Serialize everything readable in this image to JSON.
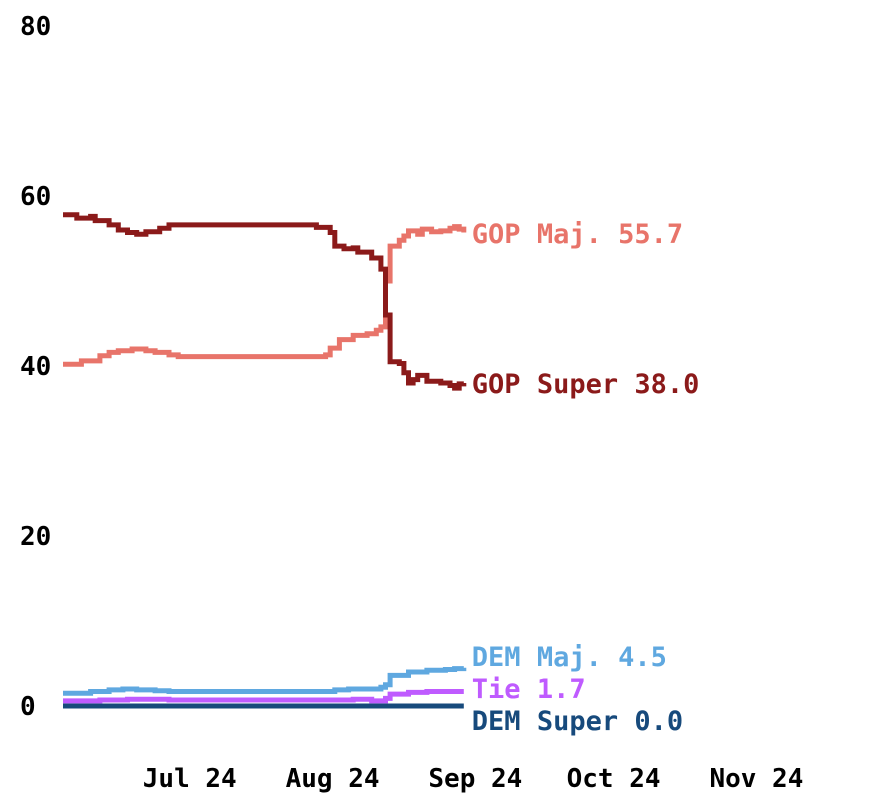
{
  "chart_data": {
    "type": "line",
    "ylim": [
      0,
      80
    ],
    "y_ticks": [
      "0",
      "20",
      "40",
      "60",
      "80"
    ],
    "x_range": [
      "2024-06-10",
      "2024-11-30"
    ],
    "x_ticks": [
      {
        "date": "2024-07-01",
        "label": "Jul 24"
      },
      {
        "date": "2024-08-01",
        "label": "Aug 24"
      },
      {
        "date": "2024-09-01",
        "label": "Sep 24"
      },
      {
        "date": "2024-10-01",
        "label": "Oct 24"
      },
      {
        "date": "2024-11-01",
        "label": "Nov 24"
      }
    ],
    "grid": false,
    "legend": "end-of-line labels",
    "series": [
      {
        "name": "GOP Maj.",
        "end_label": "55.7",
        "color": "#e8746a",
        "points": [
          [
            "2024-06-10",
            40.2
          ],
          [
            "2024-06-13",
            40.2
          ],
          [
            "2024-06-14",
            40.6
          ],
          [
            "2024-06-17",
            40.6
          ],
          [
            "2024-06-18",
            41.2
          ],
          [
            "2024-06-20",
            41.6
          ],
          [
            "2024-06-22",
            41.8
          ],
          [
            "2024-06-25",
            42.0
          ],
          [
            "2024-06-28",
            41.8
          ],
          [
            "2024-06-30",
            41.6
          ],
          [
            "2024-07-03",
            41.3
          ],
          [
            "2024-07-05",
            41.1
          ],
          [
            "2024-08-01",
            41.1
          ],
          [
            "2024-08-03",
            41.1
          ],
          [
            "2024-08-06",
            41.3
          ],
          [
            "2024-08-07",
            42.1
          ],
          [
            "2024-08-09",
            43.1
          ],
          [
            "2024-08-11",
            43.1
          ],
          [
            "2024-08-12",
            43.6
          ],
          [
            "2024-08-15",
            43.8
          ],
          [
            "2024-08-17",
            44.2
          ],
          [
            "2024-08-18",
            44.6
          ],
          [
            "2024-08-19",
            50.0
          ],
          [
            "2024-08-20",
            54.1
          ],
          [
            "2024-08-22",
            54.8
          ],
          [
            "2024-08-23",
            55.3
          ],
          [
            "2024-08-24",
            55.9
          ],
          [
            "2024-08-26",
            55.5
          ],
          [
            "2024-08-27",
            56.1
          ],
          [
            "2024-08-29",
            55.8
          ],
          [
            "2024-08-31",
            55.9
          ],
          [
            "2024-09-02",
            56.2
          ],
          [
            "2024-09-03",
            56.4
          ],
          [
            "2024-09-04",
            56.1
          ],
          [
            "2024-09-05",
            55.7
          ]
        ]
      },
      {
        "name": "GOP Super",
        "end_label": "38.0",
        "color": "#8b1a1a",
        "points": [
          [
            "2024-06-10",
            57.8
          ],
          [
            "2024-06-13",
            57.4
          ],
          [
            "2024-06-16",
            57.6
          ],
          [
            "2024-06-17",
            57.1
          ],
          [
            "2024-06-20",
            56.6
          ],
          [
            "2024-06-22",
            56.0
          ],
          [
            "2024-06-24",
            55.7
          ],
          [
            "2024-06-26",
            55.5
          ],
          [
            "2024-06-28",
            55.8
          ],
          [
            "2024-07-01",
            56.2
          ],
          [
            "2024-07-03",
            56.6
          ],
          [
            "2024-07-04",
            56.6
          ],
          [
            "2024-07-31",
            56.6
          ],
          [
            "2024-08-03",
            56.6
          ],
          [
            "2024-08-04",
            56.3
          ],
          [
            "2024-08-07",
            55.7
          ],
          [
            "2024-08-08",
            54.1
          ],
          [
            "2024-08-10",
            53.8
          ],
          [
            "2024-08-12",
            53.9
          ],
          [
            "2024-08-13",
            53.4
          ],
          [
            "2024-08-16",
            52.7
          ],
          [
            "2024-08-18",
            51.4
          ],
          [
            "2024-08-19",
            46.0
          ],
          [
            "2024-08-20",
            40.5
          ],
          [
            "2024-08-22",
            40.3
          ],
          [
            "2024-08-23",
            39.2
          ],
          [
            "2024-08-24",
            38.0
          ],
          [
            "2024-08-25",
            38.4
          ],
          [
            "2024-08-26",
            38.9
          ],
          [
            "2024-08-28",
            38.2
          ],
          [
            "2024-08-31",
            38.0
          ],
          [
            "2024-09-02",
            37.7
          ],
          [
            "2024-09-03",
            37.4
          ],
          [
            "2024-09-04",
            37.9
          ],
          [
            "2024-09-05",
            38.0
          ]
        ]
      },
      {
        "name": "DEM Maj.",
        "end_label": "4.5",
        "color": "#5fa8e0",
        "points": [
          [
            "2024-06-10",
            1.5
          ],
          [
            "2024-06-14",
            1.5
          ],
          [
            "2024-06-16",
            1.7
          ],
          [
            "2024-06-20",
            1.9
          ],
          [
            "2024-06-23",
            2.0
          ],
          [
            "2024-06-26",
            1.9
          ],
          [
            "2024-06-30",
            1.8
          ],
          [
            "2024-07-03",
            1.7
          ],
          [
            "2024-08-05",
            1.7
          ],
          [
            "2024-08-08",
            1.9
          ],
          [
            "2024-08-11",
            2.0
          ],
          [
            "2024-08-16",
            2.0
          ],
          [
            "2024-08-18",
            2.2
          ],
          [
            "2024-08-19",
            2.5
          ],
          [
            "2024-08-20",
            3.6
          ],
          [
            "2024-08-24",
            4.0
          ],
          [
            "2024-08-28",
            4.2
          ],
          [
            "2024-09-01",
            4.3
          ],
          [
            "2024-09-03",
            4.4
          ],
          [
            "2024-09-05",
            4.5
          ]
        ]
      },
      {
        "name": "Tie",
        "end_label": "1.7",
        "color": "#bf5bff",
        "points": [
          [
            "2024-06-10",
            0.6
          ],
          [
            "2024-06-18",
            0.7
          ],
          [
            "2024-06-24",
            0.8
          ],
          [
            "2024-07-03",
            0.7
          ],
          [
            "2024-08-07",
            0.7
          ],
          [
            "2024-08-12",
            0.8
          ],
          [
            "2024-08-16",
            0.6
          ],
          [
            "2024-08-19",
            0.9
          ],
          [
            "2024-08-20",
            1.4
          ],
          [
            "2024-08-24",
            1.6
          ],
          [
            "2024-08-28",
            1.7
          ],
          [
            "2024-09-05",
            1.7
          ]
        ]
      },
      {
        "name": "DEM Super",
        "end_label": "0.0",
        "color": "#174a7c",
        "points": [
          [
            "2024-06-10",
            0.0
          ],
          [
            "2024-09-05",
            0.0
          ]
        ]
      }
    ]
  }
}
